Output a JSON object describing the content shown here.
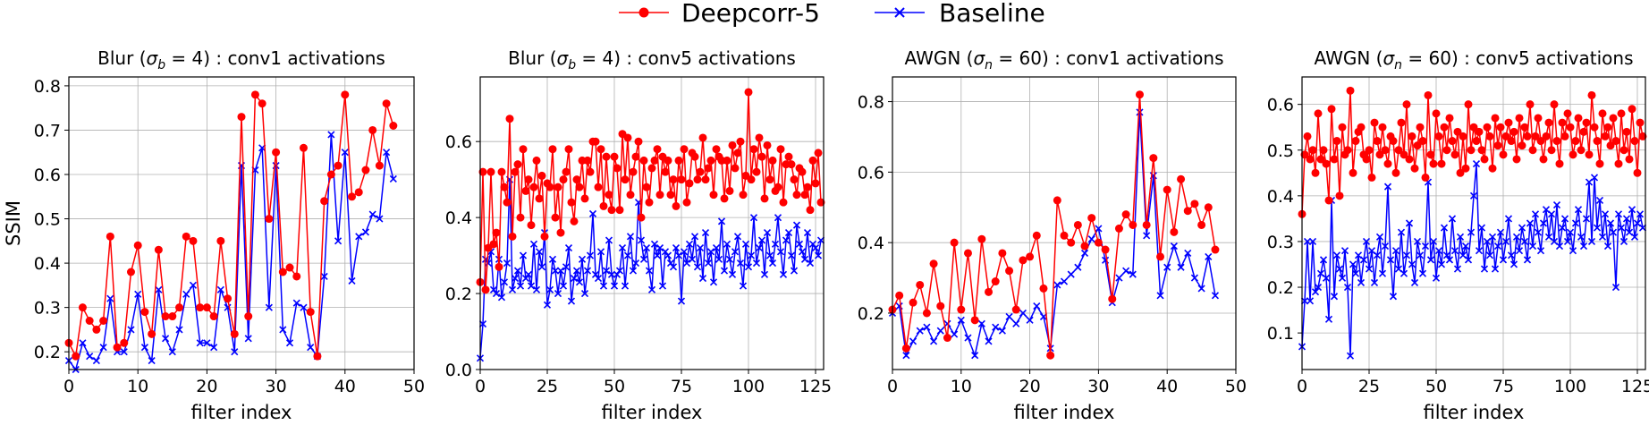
{
  "legend": {
    "location": "top-center",
    "entries": [
      {
        "label": "Deepcorr-5",
        "color": "#ff0000",
        "marker": "circle"
      },
      {
        "label": "Baseline",
        "color": "#0000ff",
        "marker": "x"
      }
    ]
  },
  "chart_data": [
    {
      "type": "line",
      "title": "Blur (σ_b = 4) : conv1 activations",
      "title_parts": {
        "pre": "Blur (",
        "sym": "σ",
        "sub": "b",
        "post": " = 4) : conv1 activations"
      },
      "xlabel": "filter index",
      "ylabel": "SSIM",
      "xlim": [
        0,
        50
      ],
      "ylim": [
        0.16,
        0.82
      ],
      "xticks": [
        0,
        10,
        20,
        30,
        40,
        50
      ],
      "yticks": [
        0.2,
        0.3,
        0.4,
        0.5,
        0.6,
        0.7,
        0.8
      ],
      "ytick_labels": [
        "0.2",
        "0.3",
        "0.4",
        "0.5",
        "0.6",
        "0.7",
        "0.8"
      ],
      "grid": true,
      "series": [
        {
          "name": "Deepcorr-5",
          "color": "#ff0000",
          "marker": "circle",
          "y": [
            0.22,
            0.19,
            0.3,
            0.27,
            0.25,
            0.27,
            0.46,
            0.21,
            0.22,
            0.38,
            0.44,
            0.29,
            0.24,
            0.43,
            0.28,
            0.28,
            0.3,
            0.46,
            0.45,
            0.3,
            0.3,
            0.28,
            0.45,
            0.32,
            0.24,
            0.73,
            0.28,
            0.78,
            0.76,
            0.5,
            0.65,
            0.38,
            0.39,
            0.37,
            0.66,
            0.29,
            0.19,
            0.54,
            0.6,
            0.62,
            0.78,
            0.55,
            0.56,
            0.61,
            0.7,
            0.62,
            0.76,
            0.71
          ]
        },
        {
          "name": "Baseline",
          "color": "#0000ff",
          "marker": "x",
          "y": [
            0.18,
            0.16,
            0.22,
            0.19,
            0.18,
            0.21,
            0.32,
            0.2,
            0.2,
            0.25,
            0.33,
            0.21,
            0.18,
            0.34,
            0.23,
            0.2,
            0.25,
            0.33,
            0.35,
            0.22,
            0.22,
            0.21,
            0.34,
            0.3,
            0.2,
            0.62,
            0.23,
            0.61,
            0.66,
            0.3,
            0.62,
            0.25,
            0.22,
            0.31,
            0.3,
            0.21,
            0.19,
            0.37,
            0.69,
            0.45,
            0.65,
            0.36,
            0.46,
            0.47,
            0.51,
            0.5,
            0.65,
            0.59
          ]
        }
      ]
    },
    {
      "type": "line",
      "title": "Blur (σ_b = 4) : conv5 activations",
      "title_parts": {
        "pre": "Blur (",
        "sym": "σ",
        "sub": "b",
        "post": " = 4) : conv5 activations"
      },
      "xlabel": "filter index",
      "ylabel": "",
      "xlim": [
        0,
        128
      ],
      "ylim": [
        0.0,
        0.77
      ],
      "xticks": [
        0,
        25,
        50,
        75,
        100,
        125
      ],
      "yticks": [
        0.0,
        0.2,
        0.4,
        0.6
      ],
      "ytick_labels": [
        "0.0",
        "0.2",
        "0.4",
        "0.6"
      ],
      "grid": true,
      "series": [
        {
          "name": "Deepcorr-5",
          "color": "#ff0000",
          "marker": "circle",
          "y": [
            0.23,
            0.52,
            0.21,
            0.32,
            0.52,
            0.33,
            0.36,
            0.27,
            0.52,
            0.48,
            0.44,
            0.66,
            0.35,
            0.52,
            0.54,
            0.4,
            0.58,
            0.47,
            0.5,
            0.38,
            0.48,
            0.55,
            0.45,
            0.51,
            0.35,
            0.49,
            0.48,
            0.58,
            0.4,
            0.48,
            0.36,
            0.5,
            0.52,
            0.58,
            0.44,
            0.39,
            0.5,
            0.48,
            0.55,
            0.45,
            0.55,
            0.52,
            0.6,
            0.6,
            0.48,
            0.58,
            0.43,
            0.56,
            0.46,
            0.42,
            0.56,
            0.53,
            0.42,
            0.62,
            0.5,
            0.61,
            0.46,
            0.52,
            0.56,
            0.6,
            0.4,
            0.55,
            0.48,
            0.44,
            0.53,
            0.55,
            0.58,
            0.46,
            0.56,
            0.52,
            0.55,
            0.46,
            0.5,
            0.43,
            0.55,
            0.5,
            0.58,
            0.44,
            0.49,
            0.57,
            0.56,
            0.5,
            0.52,
            0.61,
            0.5,
            0.53,
            0.55,
            0.46,
            0.58,
            0.56,
            0.55,
            0.45,
            0.55,
            0.47,
            0.59,
            0.53,
            0.57,
            0.6,
            0.46,
            0.51,
            0.73,
            0.5,
            0.58,
            0.52,
            0.61,
            0.56,
            0.45,
            0.59,
            0.5,
            0.55,
            0.47,
            0.48,
            0.58,
            0.44,
            0.54,
            0.56,
            0.54,
            0.5,
            0.46,
            0.53,
            0.52,
            0.46,
            0.48,
            0.42,
            0.55,
            0.49,
            0.57,
            0.44
          ]
        },
        {
          "name": "Baseline",
          "color": "#0000ff",
          "marker": "x",
          "y": [
            0.03,
            0.12,
            0.29,
            0.28,
            0.31,
            0.21,
            0.2,
            0.29,
            0.19,
            0.23,
            0.28,
            0.5,
            0.21,
            0.24,
            0.26,
            0.22,
            0.3,
            0.24,
            0.25,
            0.22,
            0.33,
            0.21,
            0.31,
            0.27,
            0.36,
            0.17,
            0.21,
            0.29,
            0.26,
            0.2,
            0.26,
            0.22,
            0.27,
            0.32,
            0.18,
            0.24,
            0.26,
            0.23,
            0.29,
            0.2,
            0.26,
            0.3,
            0.41,
            0.25,
            0.24,
            0.31,
            0.22,
            0.26,
            0.34,
            0.25,
            0.22,
            0.25,
            0.26,
            0.32,
            0.22,
            0.3,
            0.35,
            0.26,
            0.28,
            0.44,
            0.34,
            0.29,
            0.32,
            0.26,
            0.21,
            0.33,
            0.3,
            0.32,
            0.22,
            0.31,
            0.3,
            0.28,
            0.27,
            0.32,
            0.3,
            0.18,
            0.31,
            0.28,
            0.33,
            0.29,
            0.35,
            0.27,
            0.32,
            0.24,
            0.36,
            0.28,
            0.31,
            0.23,
            0.32,
            0.29,
            0.39,
            0.26,
            0.33,
            0.29,
            0.25,
            0.31,
            0.35,
            0.28,
            0.22,
            0.33,
            0.27,
            0.3,
            0.4,
            0.28,
            0.32,
            0.34,
            0.25,
            0.36,
            0.3,
            0.28,
            0.33,
            0.4,
            0.31,
            0.25,
            0.34,
            0.36,
            0.3,
            0.26,
            0.38,
            0.33,
            0.31,
            0.29,
            0.36,
            0.28,
            0.33,
            0.32,
            0.3,
            0.34
          ]
        }
      ]
    },
    {
      "type": "line",
      "title": "AWGN (σ_n = 60) : conv1 activations",
      "title_parts": {
        "pre": "AWGN (",
        "sym": "σ",
        "sub": "n",
        "post": " = 60) : conv1 activations"
      },
      "xlabel": "filter index",
      "ylabel": "",
      "xlim": [
        0,
        50
      ],
      "ylim": [
        0.04,
        0.87
      ],
      "xticks": [
        0,
        10,
        20,
        30,
        40,
        50
      ],
      "yticks": [
        0.2,
        0.4,
        0.6,
        0.8
      ],
      "ytick_labels": [
        "0.2",
        "0.4",
        "0.6",
        "0.8"
      ],
      "grid": true,
      "series": [
        {
          "name": "Deepcorr-5",
          "color": "#ff0000",
          "marker": "circle",
          "y": [
            0.21,
            0.25,
            0.1,
            0.23,
            0.28,
            0.2,
            0.34,
            0.22,
            0.13,
            0.4,
            0.21,
            0.37,
            0.18,
            0.41,
            0.26,
            0.29,
            0.37,
            0.32,
            0.21,
            0.35,
            0.36,
            0.42,
            0.27,
            0.08,
            0.52,
            0.42,
            0.4,
            0.45,
            0.39,
            0.47,
            0.4,
            0.38,
            0.24,
            0.44,
            0.48,
            0.45,
            0.82,
            0.45,
            0.64,
            0.36,
            0.55,
            0.43,
            0.58,
            0.49,
            0.51,
            0.45,
            0.5,
            0.38
          ]
        },
        {
          "name": "Baseline",
          "color": "#0000ff",
          "marker": "x",
          "y": [
            0.2,
            0.22,
            0.08,
            0.12,
            0.15,
            0.16,
            0.12,
            0.15,
            0.17,
            0.14,
            0.18,
            0.13,
            0.08,
            0.17,
            0.12,
            0.16,
            0.15,
            0.19,
            0.17,
            0.2,
            0.18,
            0.22,
            0.19,
            0.1,
            0.28,
            0.29,
            0.31,
            0.33,
            0.37,
            0.41,
            0.44,
            0.35,
            0.23,
            0.3,
            0.32,
            0.31,
            0.77,
            0.42,
            0.59,
            0.25,
            0.33,
            0.39,
            0.33,
            0.37,
            0.3,
            0.27,
            0.36,
            0.25
          ]
        }
      ]
    },
    {
      "type": "line",
      "title": "AWGN (σ_n = 60) : conv5 activations",
      "title_parts": {
        "pre": "AWGN (",
        "sym": "σ",
        "sub": "n",
        "post": " = 60) : conv5 activations"
      },
      "xlabel": "filter index",
      "ylabel": "",
      "xlim": [
        0,
        128
      ],
      "ylim": [
        0.02,
        0.66
      ],
      "xticks": [
        0,
        25,
        50,
        75,
        100,
        125
      ],
      "yticks": [
        0.1,
        0.2,
        0.3,
        0.4,
        0.5,
        0.6
      ],
      "ytick_labels": [
        "0.1",
        "0.2",
        "0.3",
        "0.4",
        "0.5",
        "0.6"
      ],
      "grid": true,
      "series": [
        {
          "name": "Deepcorr-5",
          "color": "#ff0000",
          "marker": "circle",
          "y": [
            0.36,
            0.49,
            0.53,
            0.48,
            0.5,
            0.45,
            0.58,
            0.48,
            0.5,
            0.47,
            0.39,
            0.59,
            0.48,
            0.52,
            0.4,
            0.55,
            0.49,
            0.5,
            0.63,
            0.45,
            0.52,
            0.54,
            0.55,
            0.49,
            0.48,
            0.5,
            0.44,
            0.56,
            0.52,
            0.49,
            0.55,
            0.5,
            0.47,
            0.53,
            0.52,
            0.45,
            0.5,
            0.56,
            0.49,
            0.6,
            0.48,
            0.53,
            0.46,
            0.51,
            0.55,
            0.52,
            0.44,
            0.62,
            0.49,
            0.47,
            0.58,
            0.53,
            0.47,
            0.55,
            0.5,
            0.57,
            0.52,
            0.49,
            0.54,
            0.45,
            0.53,
            0.46,
            0.6,
            0.5,
            0.55,
            0.52,
            0.54,
            0.5,
            0.48,
            0.55,
            0.53,
            0.46,
            0.57,
            0.51,
            0.55,
            0.49,
            0.53,
            0.56,
            0.52,
            0.54,
            0.48,
            0.57,
            0.51,
            0.55,
            0.53,
            0.6,
            0.5,
            0.53,
            0.57,
            0.52,
            0.48,
            0.53,
            0.56,
            0.5,
            0.6,
            0.52,
            0.47,
            0.56,
            0.53,
            0.58,
            0.55,
            0.49,
            0.52,
            0.57,
            0.5,
            0.54,
            0.56,
            0.49,
            0.62,
            0.55,
            0.52,
            0.47,
            0.58,
            0.53,
            0.55,
            0.51,
            0.57,
            0.52,
            0.47,
            0.58,
            0.5,
            0.54,
            0.48,
            0.59,
            0.52,
            0.45,
            0.56,
            0.53
          ]
        },
        {
          "name": "Baseline",
          "color": "#0000ff",
          "marker": "x",
          "y": [
            0.07,
            0.17,
            0.3,
            0.17,
            0.3,
            0.19,
            0.2,
            0.23,
            0.26,
            0.22,
            0.13,
            0.39,
            0.18,
            0.27,
            0.24,
            0.22,
            0.28,
            0.2,
            0.05,
            0.25,
            0.23,
            0.27,
            0.21,
            0.26,
            0.3,
            0.24,
            0.28,
            0.21,
            0.27,
            0.31,
            0.23,
            0.29,
            0.42,
            0.26,
            0.18,
            0.28,
            0.24,
            0.32,
            0.23,
            0.27,
            0.34,
            0.25,
            0.21,
            0.3,
            0.27,
            0.23,
            0.29,
            0.43,
            0.26,
            0.3,
            0.22,
            0.28,
            0.25,
            0.33,
            0.27,
            0.26,
            0.35,
            0.28,
            0.24,
            0.31,
            0.27,
            0.29,
            0.26,
            0.32,
            0.4,
            0.47,
            0.28,
            0.33,
            0.24,
            0.3,
            0.27,
            0.31,
            0.24,
            0.29,
            0.32,
            0.26,
            0.3,
            0.35,
            0.27,
            0.25,
            0.31,
            0.28,
            0.33,
            0.3,
            0.26,
            0.34,
            0.29,
            0.36,
            0.32,
            0.28,
            0.34,
            0.37,
            0.31,
            0.36,
            0.3,
            0.38,
            0.29,
            0.33,
            0.35,
            0.3,
            0.32,
            0.28,
            0.34,
            0.37,
            0.31,
            0.29,
            0.35,
            0.43,
            0.3,
            0.44,
            0.33,
            0.39,
            0.31,
            0.36,
            0.29,
            0.34,
            0.32,
            0.2,
            0.36,
            0.33,
            0.3,
            0.35,
            0.32,
            0.37,
            0.31,
            0.34,
            0.36,
            0.33
          ]
        }
      ]
    }
  ]
}
